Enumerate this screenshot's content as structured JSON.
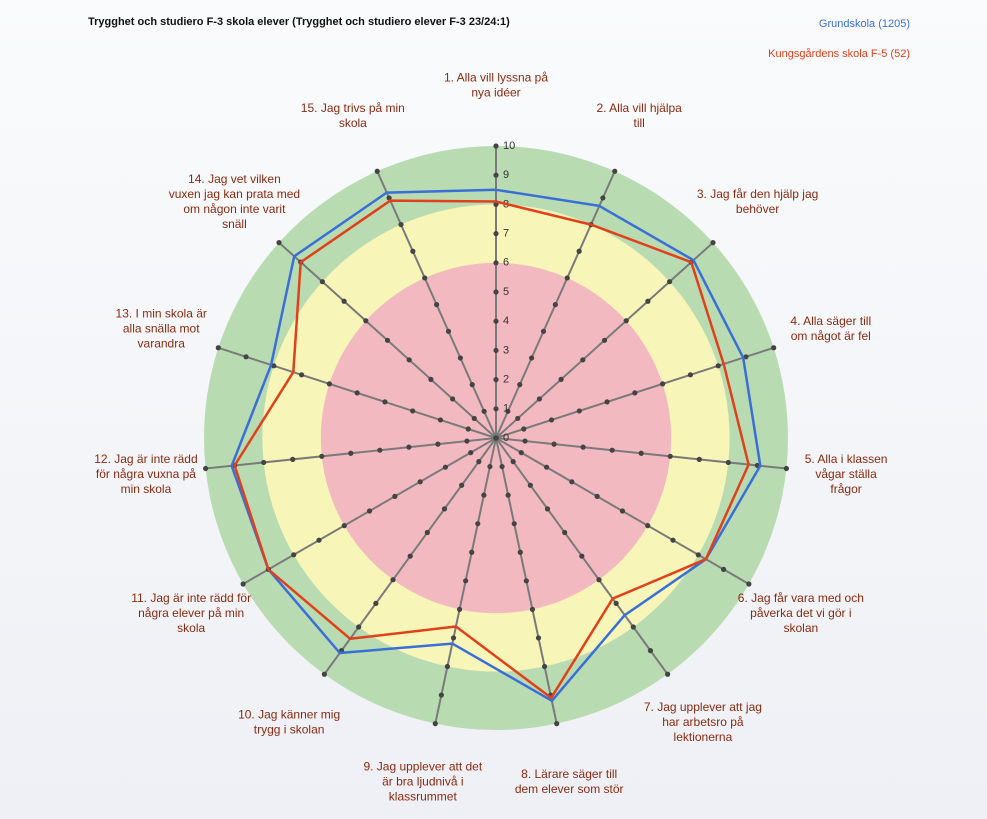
{
  "chart_data": {
    "type": "radar",
    "title": "Trygghet och studiero F-3 skola elever (Trygghet och studiero elever F-3 23/24:1)",
    "categories": [
      [
        "1. Alla vill lyssna på",
        "nya idéer"
      ],
      [
        "2. Alla vill hjälpa",
        "till"
      ],
      [
        "3. Jag får den hjälp jag",
        "behöver"
      ],
      [
        "4. Alla säger till",
        "om något är fel"
      ],
      [
        "5. Alla i klassen",
        "vågar ställa",
        "frågor"
      ],
      [
        "6. Jag får vara med och",
        "påverka det vi gör i",
        "skolan"
      ],
      [
        "7. Jag upplever att jag",
        "har arbetsro på",
        "lektionerna"
      ],
      [
        "8. Lärare säger till",
        "dem elever som stör"
      ],
      [
        "9. Jag upplever att det",
        "är bra ljudnivå i",
        "klassrummet"
      ],
      [
        "10. Jag känner mig",
        "trygg i skolan"
      ],
      [
        "11. Jag är inte rädd för",
        "några elever på min",
        "skola"
      ],
      [
        "12. Jag är inte rädd",
        "för några vuxna på",
        "min skola"
      ],
      [
        "13. I min skola är",
        "alla snälla mot",
        "varandra"
      ],
      [
        "14. Jag vet vilken",
        "vuxen jag kan prata med",
        "om någon inte varit",
        "snäll"
      ],
      [
        "15. Jag trivs på min",
        "skola"
      ]
    ],
    "series": [
      {
        "name": "Grundskola (1205)",
        "color": "#3a6fd8",
        "values": [
          8.5,
          8.7,
          9.1,
          8.9,
          9.1,
          8.3,
          7.5,
          9.2,
          7.2,
          9.1,
          9.0,
          9.1,
          8.1,
          9.3,
          9.2
        ]
      },
      {
        "name": "Kungsgårdens skola F-5 (52)",
        "color": "#e0401a",
        "values": [
          8.1,
          8.0,
          9.0,
          8.2,
          8.7,
          8.3,
          6.8,
          9.1,
          6.6,
          8.5,
          9.0,
          9.0,
          7.3,
          9.0,
          8.9
        ]
      }
    ],
    "ylim": [
      0,
      10
    ],
    "yticks": [
      0,
      1,
      2,
      3,
      4,
      5,
      6,
      7,
      8,
      9,
      10
    ],
    "legend": "top-right"
  }
}
